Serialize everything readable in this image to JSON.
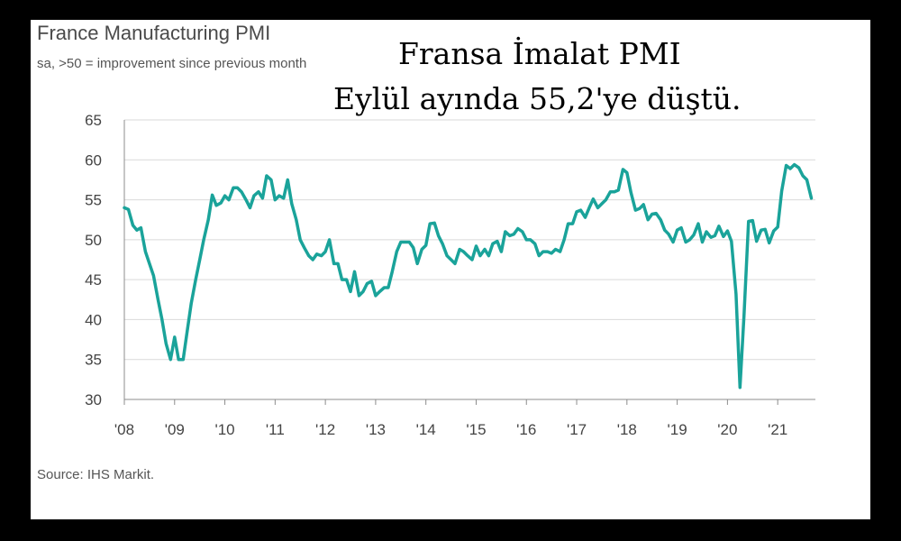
{
  "chart_data": {
    "type": "line",
    "title": "France Manufacturing PMI",
    "subtitle": "sa, >50 = improvement since previous month",
    "overlay_title_line1": "Fransa İmalat PMI",
    "overlay_title_line2": "Eylül ayında 55,2'ye düştü.",
    "source": "Source: IHS Markit.",
    "xlabel": "",
    "ylabel": "",
    "ylim": [
      30,
      65
    ],
    "xlim": [
      2008.0,
      2021.75
    ],
    "yticks": [
      "30",
      "35",
      "40",
      "45",
      "50",
      "55",
      "60",
      "65"
    ],
    "xticks": [
      {
        "label": "'08",
        "value": 2008
      },
      {
        "label": "'09",
        "value": 2009
      },
      {
        "label": "'10",
        "value": 2010
      },
      {
        "label": "'11",
        "value": 2011
      },
      {
        "label": "'12",
        "value": 2012
      },
      {
        "label": "'13",
        "value": 2013
      },
      {
        "label": "'14",
        "value": 2014
      },
      {
        "label": "'15",
        "value": 2015
      },
      {
        "label": "'16",
        "value": 2016
      },
      {
        "label": "'17",
        "value": 2017
      },
      {
        "label": "'18",
        "value": 2018
      },
      {
        "label": "'19",
        "value": 2019
      },
      {
        "label": "'20",
        "value": 2020
      },
      {
        "label": "'21",
        "value": 2021
      }
    ],
    "grid": "horizontal",
    "line_color": "#1aa39a",
    "series": [
      {
        "x": [
          2008.0,
          2008.08,
          2008.17,
          2008.25,
          2008.33,
          2008.42,
          2008.5,
          2008.58,
          2008.67,
          2008.75,
          2008.83,
          2008.92,
          2009.0,
          2009.08,
          2009.17,
          2009.25,
          2009.33,
          2009.42,
          2009.5,
          2009.58,
          2009.67,
          2009.75,
          2009.83,
          2009.92,
          2010.0,
          2010.08,
          2010.17,
          2010.25,
          2010.33,
          2010.42,
          2010.5,
          2010.58,
          2010.67,
          2010.75,
          2010.83,
          2010.92,
          2011.0,
          2011.08,
          2011.17,
          2011.25,
          2011.33,
          2011.42,
          2011.5,
          2011.58,
          2011.67,
          2011.75,
          2011.83,
          2011.92,
          2012.0,
          2012.08,
          2012.17,
          2012.25,
          2012.33,
          2012.42,
          2012.5,
          2012.58,
          2012.67,
          2012.75,
          2012.83,
          2012.92,
          2013.0,
          2013.08,
          2013.17,
          2013.25,
          2013.33,
          2013.42,
          2013.5,
          2013.58,
          2013.67,
          2013.75,
          2013.83,
          2013.92,
          2014.0,
          2014.08,
          2014.17,
          2014.25,
          2014.33,
          2014.42,
          2014.5,
          2014.58,
          2014.67,
          2014.75,
          2014.83,
          2014.92,
          2015.0,
          2015.08,
          2015.17,
          2015.25,
          2015.33,
          2015.42,
          2015.5,
          2015.58,
          2015.67,
          2015.75,
          2015.83,
          2015.92,
          2016.0,
          2016.08,
          2016.17,
          2016.25,
          2016.33,
          2016.42,
          2016.5,
          2016.58,
          2016.67,
          2016.75,
          2016.83,
          2016.92,
          2017.0,
          2017.08,
          2017.17,
          2017.25,
          2017.33,
          2017.42,
          2017.5,
          2017.58,
          2017.67,
          2017.75,
          2017.83,
          2017.92,
          2018.0,
          2018.08,
          2018.17,
          2018.25,
          2018.33,
          2018.42,
          2018.5,
          2018.58,
          2018.67,
          2018.75,
          2018.83,
          2018.92,
          2019.0,
          2019.08,
          2019.17,
          2019.25,
          2019.33,
          2019.42,
          2019.5,
          2019.58,
          2019.67,
          2019.75,
          2019.83,
          2019.92,
          2020.0,
          2020.08,
          2020.17,
          2020.25,
          2020.33,
          2020.42,
          2020.5,
          2020.58,
          2020.67,
          2020.75,
          2020.83,
          2020.92,
          2021.0,
          2021.08,
          2021.17,
          2021.25,
          2021.33,
          2021.42,
          2021.5,
          2021.58,
          2021.67
        ],
        "values": [
          54.0,
          53.8,
          51.8,
          51.2,
          51.5,
          48.5,
          47.0,
          45.5,
          42.5,
          40.0,
          37.0,
          35.0,
          37.8,
          35.0,
          35.0,
          38.5,
          42.0,
          45.0,
          47.5,
          50.0,
          52.5,
          55.6,
          54.3,
          54.6,
          55.5,
          55.0,
          56.5,
          56.5,
          56.0,
          55.0,
          54.0,
          55.5,
          56.0,
          55.2,
          58.0,
          57.5,
          55.0,
          55.5,
          55.2,
          57.5,
          54.5,
          52.5,
          50.0,
          49.0,
          48.0,
          47.5,
          48.2,
          48.0,
          48.5,
          50.0,
          47.0,
          47.0,
          45.0,
          45.0,
          43.5,
          46.0,
          43.0,
          43.5,
          44.5,
          44.8,
          43.0,
          43.5,
          44.0,
          44.0,
          46.0,
          48.5,
          49.7,
          49.7,
          49.7,
          49.0,
          47.0,
          48.8,
          49.3,
          52.0,
          52.1,
          50.5,
          49.5,
          48.0,
          47.5,
          47.0,
          48.8,
          48.5,
          48.0,
          47.5,
          49.2,
          48.0,
          48.8,
          48.0,
          49.5,
          49.8,
          48.5,
          51.0,
          50.5,
          50.7,
          51.4,
          51.0,
          50.0,
          50.0,
          49.5,
          48.0,
          48.5,
          48.5,
          48.3,
          48.8,
          48.5,
          50.0,
          52.0,
          52.0,
          53.5,
          53.7,
          52.8,
          54.0,
          55.1,
          54.0,
          54.5,
          55.0,
          56.0,
          56.0,
          56.2,
          58.8,
          58.4,
          55.9,
          53.7,
          53.9,
          54.4,
          52.5,
          53.2,
          53.3,
          52.5,
          51.2,
          50.7,
          49.7,
          51.2,
          51.5,
          49.7,
          50.0,
          50.6,
          52.0,
          49.7,
          51.0,
          50.3,
          50.5,
          51.7,
          50.4,
          51.1,
          49.8,
          43.2,
          31.5,
          40.6,
          52.3,
          52.4,
          49.8,
          51.2,
          51.3,
          49.6,
          51.1,
          51.6,
          56.1,
          59.3,
          58.9,
          59.4,
          59.0,
          58.0,
          57.5,
          55.2
        ]
      }
    ]
  }
}
